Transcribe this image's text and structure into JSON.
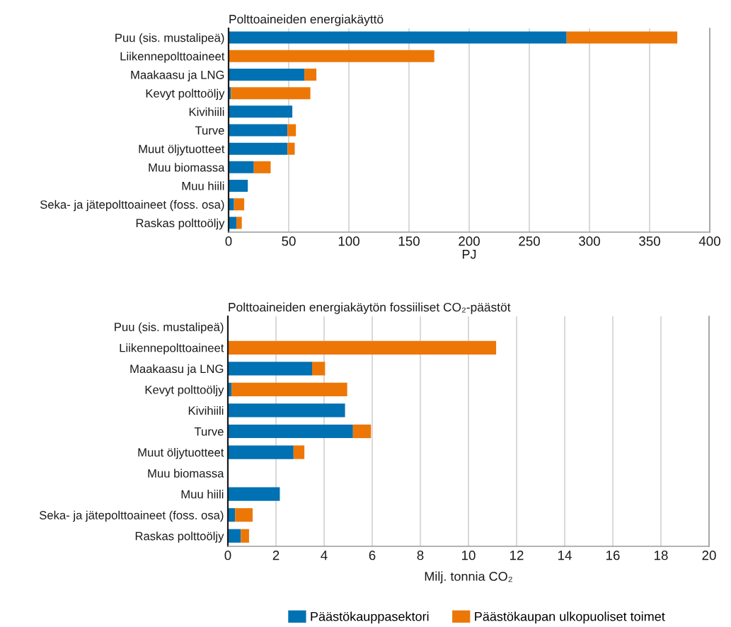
{
  "chart_data": [
    {
      "type": "bar",
      "orientation": "horizontal",
      "stacked": true,
      "title": "Polttoaineiden energiakäyttö",
      "xlabel": "PJ",
      "categories": [
        "Puu (sis. mustalipeä)",
        "Liikennepolttoaineet",
        "Maakaasu ja LNG",
        "Kevyt polttoöljy",
        "Kivihiili",
        "Turve",
        "Muut öljytuotteet",
        "Muu biomassa",
        "Muu hiili",
        "Seka- ja jätepolttoaineet (foss. osa)",
        "Raskas polttoöljy"
      ],
      "series": [
        {
          "color": "#0071b2",
          "values": [
            281,
            null,
            63,
            2,
            53,
            49,
            49,
            21,
            16,
            4.5,
            6.5
          ]
        },
        {
          "color": "#ec7707",
          "values": [
            92,
            171,
            10,
            66,
            null,
            7,
            6,
            14,
            null,
            8.5,
            4.5
          ]
        }
      ],
      "xlim": [
        0,
        400
      ],
      "xticks": [
        0,
        50,
        100,
        150,
        200,
        250,
        300,
        350,
        400
      ],
      "grid": "x"
    },
    {
      "type": "bar",
      "orientation": "horizontal",
      "stacked": true,
      "title": "Polttoaineiden energiakäytön fossiiliset CO₂-päästöt",
      "xlabel": "Milj. tonnia CO₂",
      "categories": [
        "Puu (sis. mustalipeä)",
        "Liikennepolttoaineet",
        "Maakaasu ja LNG",
        "Kevyt polttoöljy",
        "Kivihiili",
        "Turve",
        "Muut öljytuotteet",
        "Muu biomassa",
        "Muu hiili",
        "Seka- ja jätepolttoaineet (foss. osa)",
        "Raskas polttoöljy"
      ],
      "series": [
        {
          "name": "Päästökauppasektori",
          "color": "#0071b2",
          "values": [
            null,
            null,
            3.5,
            0.15,
            4.87,
            5.2,
            2.73,
            null,
            2.16,
            0.3,
            0.54
          ]
        },
        {
          "name": "Päästökaupan ulkopuoliset toimet",
          "color": "#ec7707",
          "values": [
            null,
            11.15,
            0.54,
            4.81,
            null,
            0.75,
            0.45,
            null,
            null,
            0.73,
            0.34
          ]
        }
      ],
      "xlim": [
        0,
        20
      ],
      "xticks": [
        0,
        2,
        4,
        6,
        8,
        10,
        12,
        14,
        16,
        18,
        20
      ],
      "grid": "x",
      "legend": "bottom"
    }
  ]
}
